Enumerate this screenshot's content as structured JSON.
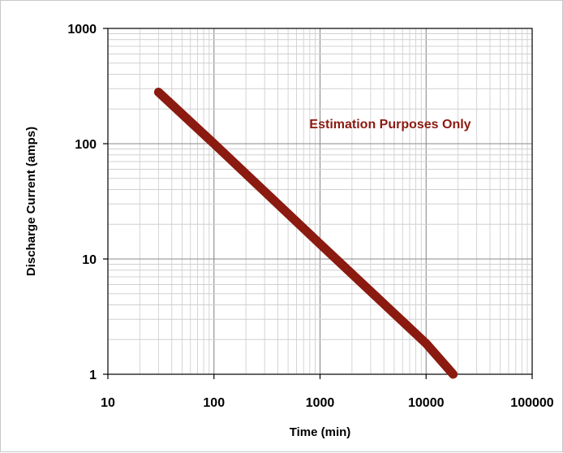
{
  "chart_data": {
    "type": "line",
    "title": "",
    "xlabel": "Time (min)",
    "ylabel": "Discharge Current (amps)",
    "x_scale": "log",
    "y_scale": "log",
    "xlim": [
      10,
      100000
    ],
    "ylim": [
      1,
      1000
    ],
    "x_ticks": [
      "10",
      "100",
      "1000",
      "10000",
      "100000"
    ],
    "y_ticks": [
      "1",
      "10",
      "100",
      "1000"
    ],
    "grid": true,
    "legend": "none",
    "series": [
      {
        "color": "#8b1a10",
        "x": [
          30,
          100,
          1000,
          10000,
          18000
        ],
        "y": [
          280,
          100,
          13.5,
          1.85,
          1.0
        ]
      }
    ],
    "annotation": {
      "text": "Estimation Purposes Only",
      "color": "#8b1a10"
    }
  }
}
